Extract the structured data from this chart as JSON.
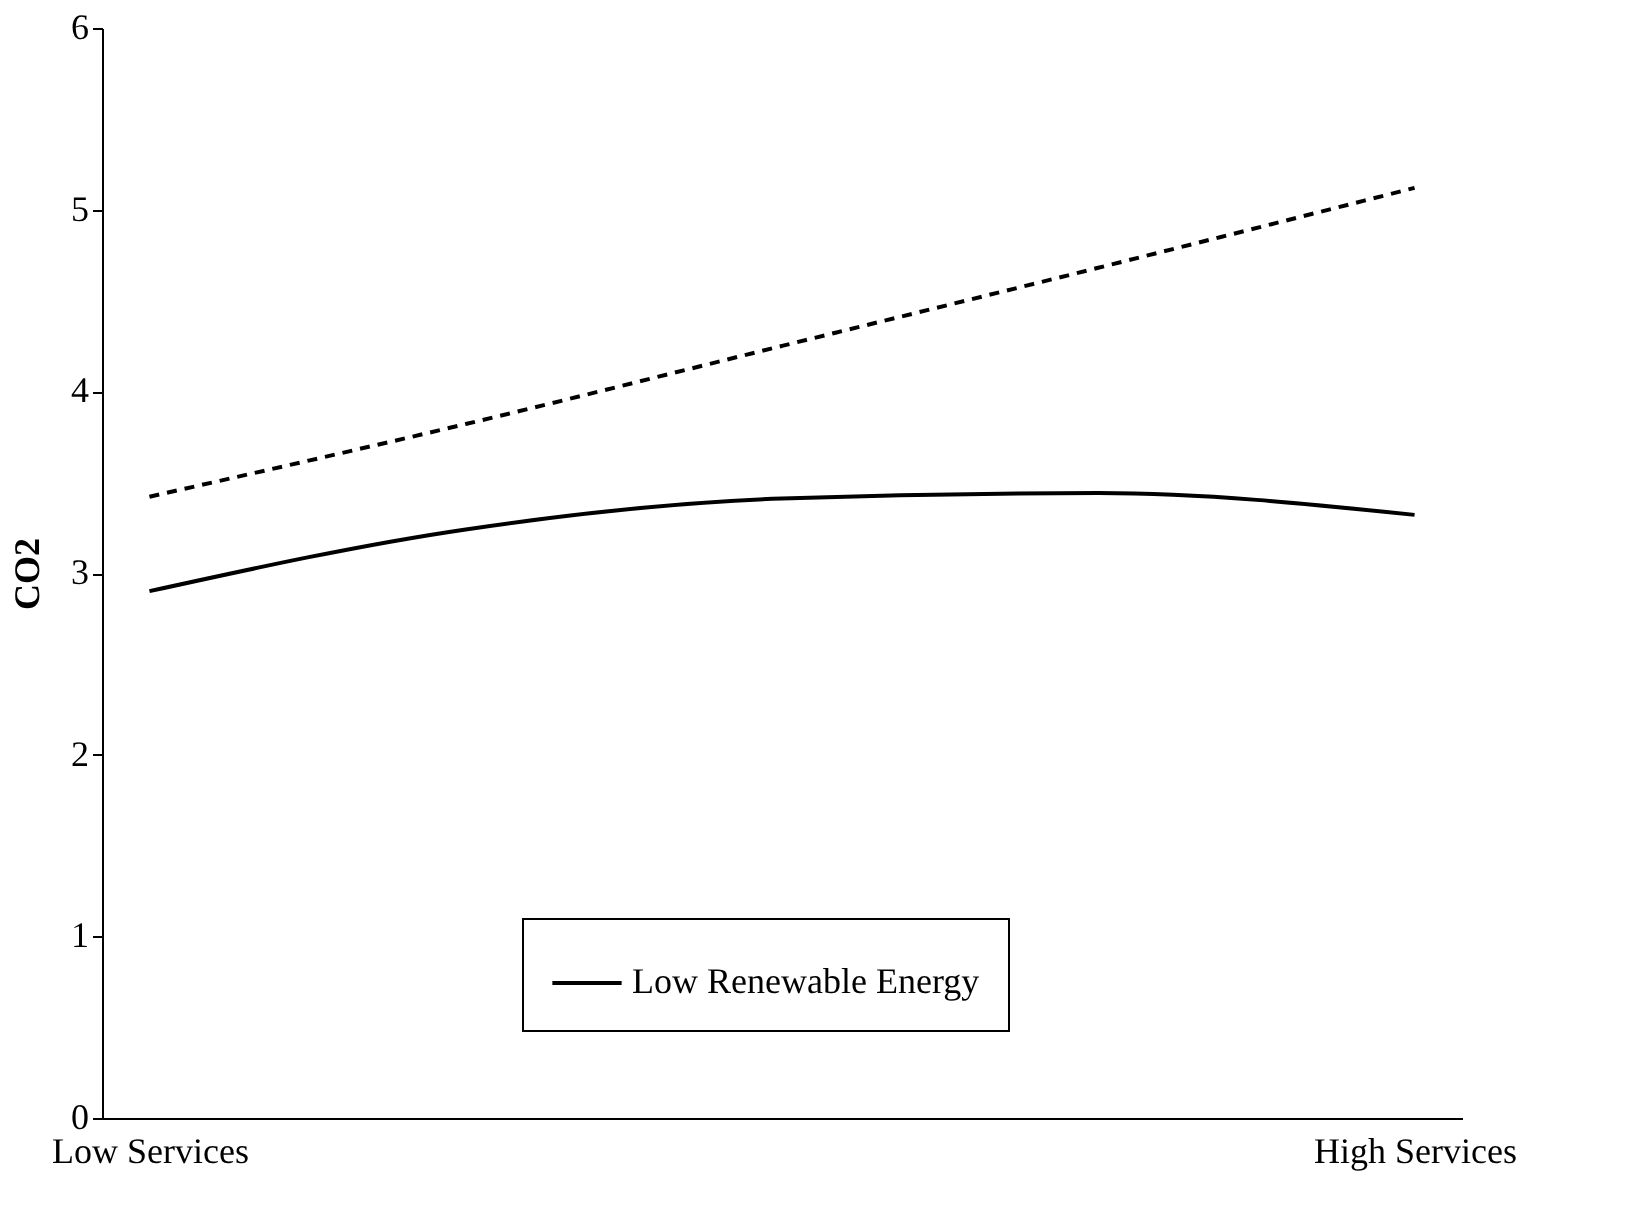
{
  "chart_data": {
    "type": "line",
    "ylabel": "CO2",
    "categories": [
      "Low Services",
      null,
      null,
      null,
      "High Services"
    ],
    "series": [
      {
        "name": "Low Renewable Energy",
        "color": "#000000",
        "line_style": "solid",
        "values": [
          2.9,
          3.24,
          3.41,
          3.44,
          3.32
        ]
      },
      {
        "color": "#000000",
        "line_style": "dashed",
        "values": [
          3.42,
          3.82,
          4.25,
          4.68,
          5.12
        ]
      }
    ],
    "ylim": [
      0,
      6
    ],
    "yticks": [
      0,
      1,
      2,
      3,
      4,
      5,
      6
    ],
    "grid": false,
    "legend": "bottom",
    "marker": "none"
  }
}
